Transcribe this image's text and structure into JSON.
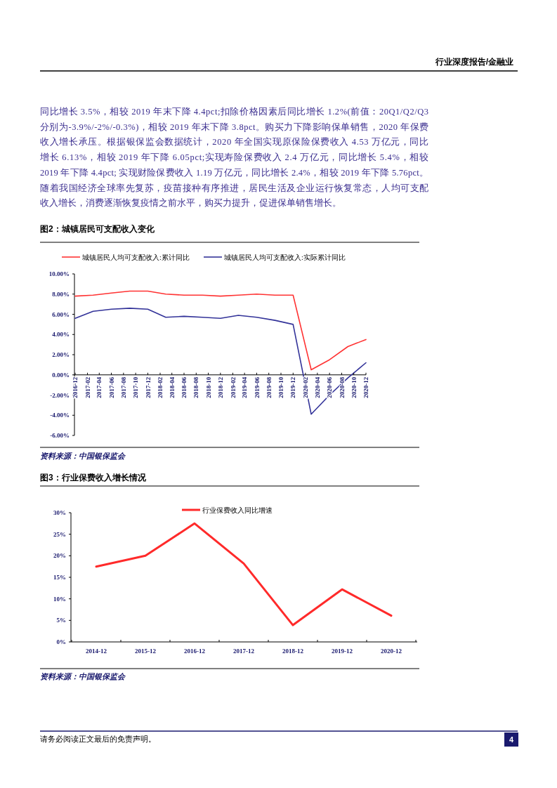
{
  "chart_data": [
    {
      "type": "line",
      "title": "图2：城镇居民可支配收入变化",
      "annotations": [
        "行业深度报告/金融业",
        "同比增长 3.5%，相较 2019 年末下降 4.4pct;扣除价格因素后同比增长 1.2%(前值：20Q1/Q2/Q3",
        "分别为-3.9%/-2%/-0.3%)，相较 2019 年末下降 3.8pct。购买力下降影响保单销售，2020 年保费",
        "收入增长承压。根据银保监会数据统计，2020 年全国实现原保险保费收入 4.53 万亿元，同比",
        "增长 6.13%，相较 2019 年下降 6.05pct;实现寿险保费收入 2.4 万亿元，同比增长 5.4%，相较",
        "2019 年下降 4.4pct; 实现财险保费收入 1.19 万亿元，同比增长 2.4%，相较 2019 年下降 5.76pct。",
        "随着我国经济全球率先复苏，疫苗接种有序推进，居民生活及企业运行恢复常态，人均可支配",
        "收入增长，消费逐渐恢复疫情之前水平，购买力提升，促进保单销售增长。",
        "资料来源：中国银保监会"
      ],
      "x": [
        "2016-12",
        "2017-03",
        "2017-06",
        "2017-09",
        "2017-12",
        "2018-03",
        "2018-06",
        "2018-09",
        "2018-12",
        "2019-03",
        "2019-06",
        "2019-09",
        "2019-12",
        "2020-03",
        "2020-06",
        "2020-09",
        "2020-12"
      ],
      "series": [
        {
          "name": "城镇居民人均可支配收入:累计同比",
          "color": "#ff3333",
          "values": [
            7.8,
            7.9,
            8.1,
            8.3,
            8.3,
            8.0,
            7.9,
            7.9,
            7.8,
            7.9,
            8.0,
            7.9,
            7.9,
            0.5,
            1.5,
            2.8,
            3.5
          ]
        },
        {
          "name": "城镇居民人均可支配收入:实际累计同比",
          "color": "#333399",
          "values": [
            5.6,
            6.3,
            6.5,
            6.6,
            6.5,
            5.7,
            5.8,
            5.7,
            5.6,
            5.9,
            5.7,
            5.4,
            5.0,
            -3.9,
            -2.0,
            -0.3,
            1.2
          ]
        }
      ],
      "xlim": [
        "2016-12",
        "2020-12"
      ],
      "xticks": [
        "2016-12",
        "2017-02",
        "2017-04",
        "2017-06",
        "2017-08",
        "2017-10",
        "2017-12",
        "2018-02",
        "2018-04",
        "2018-06",
        "2018-08",
        "2018-10",
        "2018-12",
        "2019-02",
        "2019-04",
        "2019-06",
        "2019-08",
        "2019-10",
        "2019-12",
        "2020-02",
        "2020-04",
        "2020-06",
        "2020-08",
        "2020-10",
        "2020-12"
      ],
      "ylim": [
        -6,
        10
      ],
      "yticks": [
        {
          "value": -6,
          "label": "-6.00%"
        },
        {
          "value": -4,
          "label": "-4.00%"
        },
        {
          "value": -2,
          "label": "-2.00%"
        },
        {
          "value": 0,
          "label": "0.00%"
        },
        {
          "value": 2,
          "label": "2.00%"
        },
        {
          "value": 4,
          "label": "4.00%"
        },
        {
          "value": 6,
          "label": "6.00%"
        },
        {
          "value": 8,
          "label": "8.00%"
        },
        {
          "value": 10,
          "label": "10.00%"
        }
      ],
      "legend": "top"
    },
    {
      "type": "line",
      "title": "图3：行业保费收入增长情况",
      "annotations": [
        "资料来源：中国银保监会",
        "请务必阅读正文最后的免责声明。",
        "4"
      ],
      "categories": [
        "2014-12",
        "2015-12",
        "2016-12",
        "2017-12",
        "2018-12",
        "2019-12",
        "2020-12"
      ],
      "series": [
        {
          "name": "行业保费收入同比增速",
          "color": "#ff2a2a",
          "values": [
            17.5,
            20.0,
            27.5,
            18.2,
            3.9,
            12.2,
            6.1
          ]
        }
      ],
      "ylim": [
        0,
        30
      ],
      "yticks": [
        {
          "value": 0,
          "label": "0%"
        },
        {
          "value": 5,
          "label": "5%"
        },
        {
          "value": 10,
          "label": "10%"
        },
        {
          "value": 15,
          "label": "15%"
        },
        {
          "value": 20,
          "label": "20%"
        },
        {
          "value": 25,
          "label": "25%"
        },
        {
          "value": 30,
          "label": "30%"
        }
      ],
      "legend": "top"
    }
  ]
}
